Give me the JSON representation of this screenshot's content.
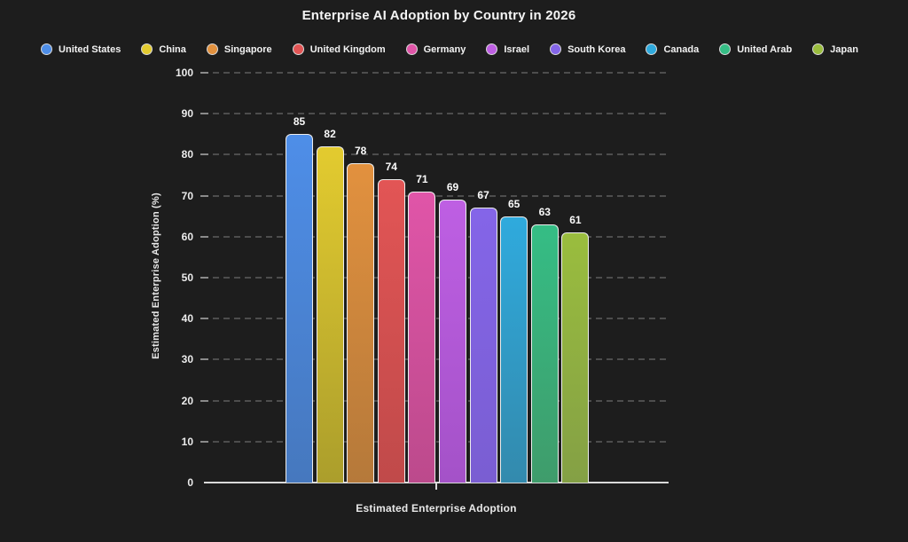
{
  "title": "Enterprise AI Adoption by Country in 2026",
  "colors": {
    "background": "#1D1D1D",
    "text": "#F2F2F2",
    "grid": "#4D4D4D",
    "axis": "#D9D9D9",
    "bar_border": "#EDEDED"
  },
  "chart_data": {
    "type": "bar",
    "title": "Enterprise AI Adoption by Country in 2026",
    "xlabel": "Estimated Enterprise Adoption",
    "ylabel": "Estimated Enterprise Adoption (%)",
    "ylim": [
      0,
      100
    ],
    "yticks": [
      0,
      10,
      20,
      30,
      40,
      50,
      60,
      70,
      80,
      90,
      100
    ],
    "grid": "horizontal-dashed",
    "legend_position": "top",
    "categories": [
      "Estimated Enterprise Adoption"
    ],
    "series": [
      {
        "name": "United States",
        "value": 85,
        "color_top": "#4E8EE8",
        "color_bottom": "#4678BE"
      },
      {
        "name": "China",
        "value": 82,
        "color_top": "#E3CB2F",
        "color_bottom": "#AB9E2C"
      },
      {
        "name": "Singapore",
        "value": 78,
        "color_top": "#E2913E",
        "color_bottom": "#B5793A"
      },
      {
        "name": "United Kingdom",
        "value": 74,
        "color_top": "#E25555",
        "color_bottom": "#C04A4A"
      },
      {
        "name": "Germany",
        "value": 71,
        "color_top": "#E055A8",
        "color_bottom": "#BC4A8C"
      },
      {
        "name": "Israel",
        "value": 69,
        "color_top": "#BE5FE3",
        "color_bottom": "#A452C8"
      },
      {
        "name": "South Korea",
        "value": 67,
        "color_top": "#8465E8",
        "color_bottom": "#7A5ED2"
      },
      {
        "name": "Canada",
        "value": 65,
        "color_top": "#2FAADD",
        "color_bottom": "#338AAD"
      },
      {
        "name": "United Arab",
        "value": 63,
        "color_top": "#35BD85",
        "color_bottom": "#3F9C6B"
      },
      {
        "name": "Japan",
        "value": 61,
        "color_top": "#9ABD3E",
        "color_bottom": "#84A045"
      }
    ]
  }
}
